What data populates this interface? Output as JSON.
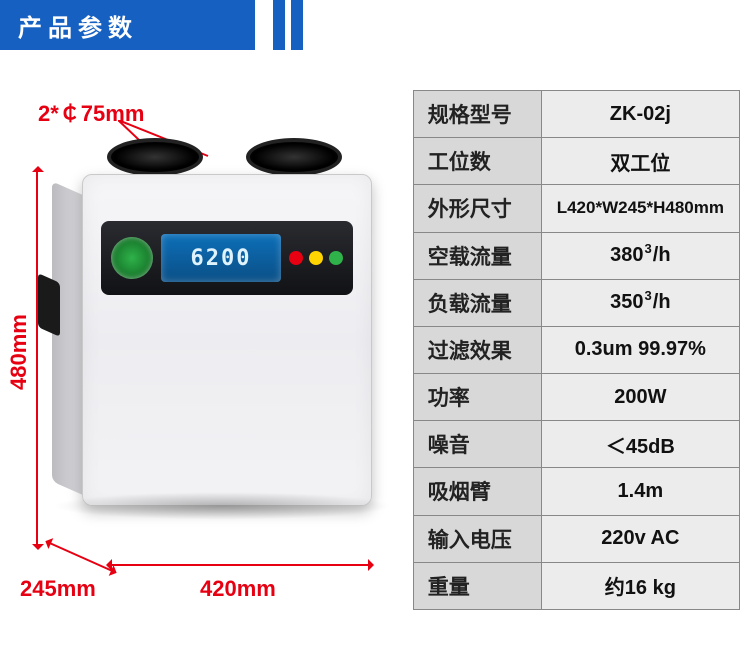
{
  "header": {
    "title": "产品参数"
  },
  "colors": {
    "brand": "#1660c2",
    "accent": "#e60012",
    "table_label_bg": "#d8d8d8",
    "table_value_bg": "#ececec",
    "table_border": "#888888"
  },
  "product": {
    "port_label": "2*￠75mm",
    "dim_height": "480mm",
    "dim_depth": "245mm",
    "dim_width": "420mm",
    "display_readout": "6200"
  },
  "specs": [
    {
      "label": "规格型号",
      "value": "ZK-02j"
    },
    {
      "label": "工位数",
      "value": "双工位"
    },
    {
      "label": "外形尺寸",
      "value": "L420*W245*H480mm",
      "value_fontsize": "17px"
    },
    {
      "label": "空载流量",
      "value_html": "380<span class='sup'>3</span>/h",
      "sup": true
    },
    {
      "label": "负载流量",
      "value_html": "350<span class='sup'>3</span>/h",
      "sup": true
    },
    {
      "label": "过滤效果",
      "value": "0.3um 99.97%"
    },
    {
      "label": "功率",
      "value": "200W"
    },
    {
      "label": "噪音",
      "value": "＜45dB"
    },
    {
      "label": "吸烟臂",
      "value": "1.4m"
    },
    {
      "label": "输入电压",
      "value": "220v  AC"
    },
    {
      "label": "重量",
      "value": "约16 kg"
    }
  ]
}
